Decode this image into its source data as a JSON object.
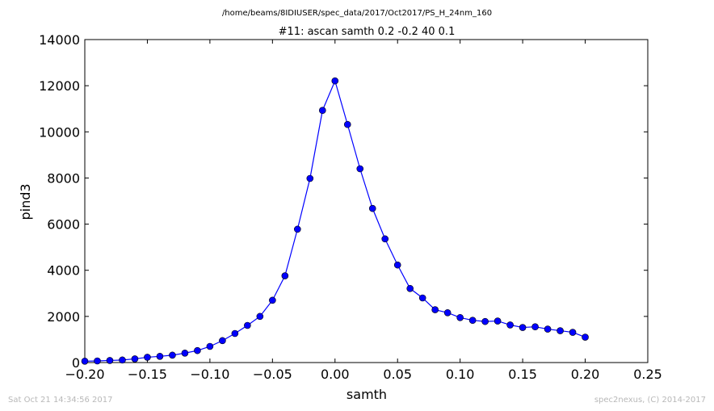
{
  "header": {
    "path": "/home/beams/8IDIUSER/spec_data/2017/Oct2017/PS_H_24nm_160"
  },
  "footer": {
    "timestamp": "Sat Oct 21 14:34:56 2017",
    "credit": "spec2nexus, (C) 2014-2017"
  },
  "chart_data": {
    "type": "line",
    "title": "#11: ascan  samth 0.2 -0.2  40 0.1",
    "xlabel": "samth",
    "ylabel": "pind3",
    "xlim": [
      -0.2,
      0.25
    ],
    "ylim": [
      0,
      14000
    ],
    "xticks": [
      -0.2,
      -0.15,
      -0.1,
      -0.05,
      0.0,
      0.05,
      0.1,
      0.15,
      0.2,
      0.25
    ],
    "xtick_labels": [
      "−0.20",
      "−0.15",
      "−0.10",
      "−0.05",
      "0.00",
      "0.05",
      "0.10",
      "0.15",
      "0.20",
      "0.25"
    ],
    "yticks": [
      0,
      2000,
      4000,
      6000,
      8000,
      10000,
      12000,
      14000
    ],
    "ytick_labels": [
      "0",
      "2000",
      "4000",
      "6000",
      "8000",
      "10000",
      "12000",
      "14000"
    ],
    "grid": false,
    "color": "#0000ff",
    "marker": "circle",
    "x": [
      -0.2,
      -0.19,
      -0.18,
      -0.17,
      -0.16,
      -0.15,
      -0.14,
      -0.13,
      -0.12,
      -0.11,
      -0.1,
      -0.09,
      -0.08,
      -0.07,
      -0.06,
      -0.05,
      -0.04,
      -0.03,
      -0.02,
      -0.01,
      0.0,
      0.01,
      0.02,
      0.03,
      0.04,
      0.05,
      0.06,
      0.07,
      0.08,
      0.09,
      0.1,
      0.11,
      0.12,
      0.13,
      0.14,
      0.15,
      0.16,
      0.17,
      0.18,
      0.19,
      0.2
    ],
    "y": [
      60,
      70,
      90,
      110,
      160,
      230,
      270,
      320,
      410,
      520,
      700,
      950,
      1260,
      1610,
      2000,
      2700,
      3760,
      5780,
      7980,
      10930,
      12210,
      10320,
      8400,
      6680,
      5360,
      4230,
      3210,
      2800,
      2290,
      2160,
      1950,
      1830,
      1780,
      1800,
      1630,
      1520,
      1550,
      1450,
      1380,
      1310,
      1100
    ]
  }
}
